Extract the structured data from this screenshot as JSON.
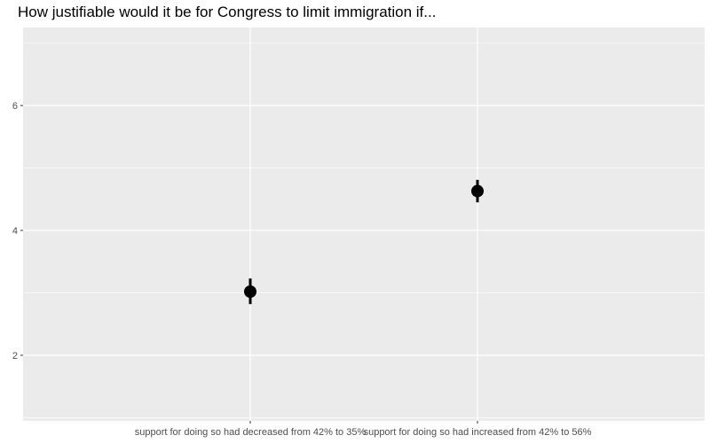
{
  "chart_data": {
    "type": "scatter",
    "title": "How justifiable would it be for Congress to limit immigration if...",
    "xlabel": "",
    "ylabel": "",
    "categories": [
      "support for doing so had decreased from 42% to 35%",
      "support for doing so had increased from 42% to 56%"
    ],
    "values": [
      3.02,
      4.63
    ],
    "error_low": [
      2.82,
      4.45
    ],
    "error_high": [
      3.23,
      4.81
    ],
    "ylim": [
      0.95,
      7.25
    ],
    "yticks": [
      2,
      4,
      6
    ],
    "ytick_labels": [
      "2",
      "4",
      "6"
    ],
    "grid": true,
    "legend": "none",
    "colors": {
      "panel": "#ebebeb",
      "grid": "#ffffff",
      "point": "#000000",
      "axis_text": "#4d4d4d"
    }
  }
}
